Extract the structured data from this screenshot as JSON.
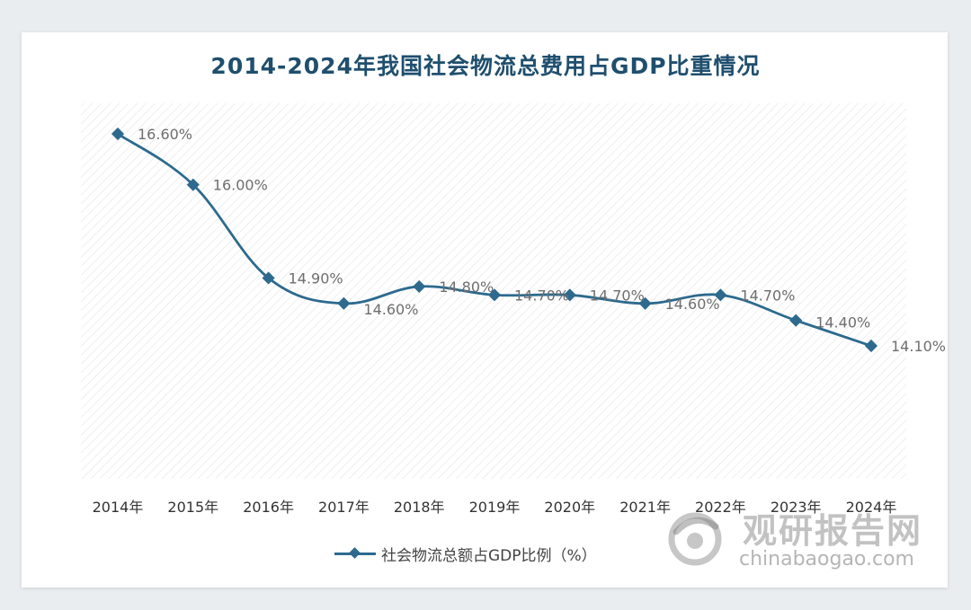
{
  "chart_data": {
    "type": "line",
    "title": "2014-2024年我国社会物流总费用占GDP比重情况",
    "categories": [
      "2014年",
      "2015年",
      "2016年",
      "2017年",
      "2018年",
      "2019年",
      "2020年",
      "2021年",
      "2022年",
      "2023年",
      "2024年"
    ],
    "series": [
      {
        "name": "社会物流总额占GDP比例（%）",
        "values": [
          16.6,
          16.0,
          14.9,
          14.6,
          14.8,
          14.7,
          14.7,
          14.6,
          14.7,
          14.4,
          14.1
        ],
        "data_labels": [
          "16.60%",
          "16.00%",
          "14.90%",
          "14.60%",
          "14.80%",
          "14.70%",
          "14.70%",
          "14.60%",
          "14.70%",
          "14.40%",
          "14.10%"
        ]
      }
    ],
    "legend_position": "bottom",
    "grid": false,
    "line_color": "#2d6a8e"
  },
  "watermark": {
    "brand": "观研报告网",
    "url": "chinabaogao.com"
  }
}
